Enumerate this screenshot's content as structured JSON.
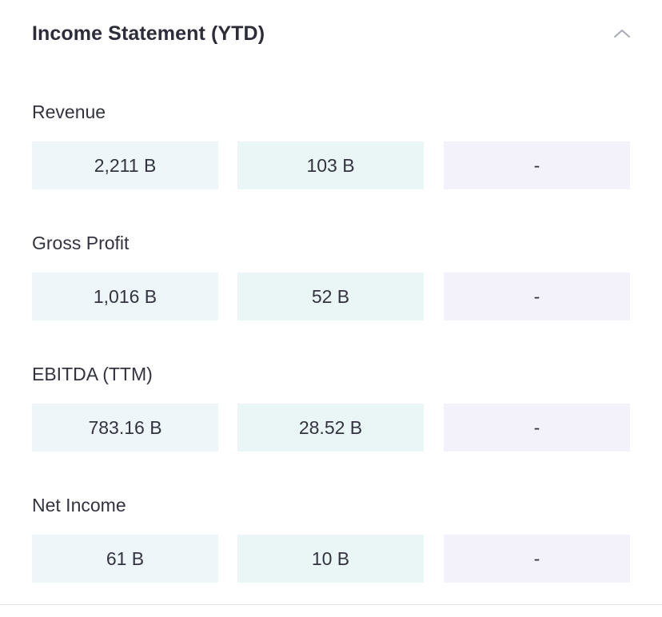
{
  "section": {
    "title": "Income Statement (YTD)",
    "collapse_icon": "chevron-up-icon"
  },
  "metrics": [
    {
      "label": "Revenue",
      "values": [
        "2,211 B",
        "103 B",
        "-"
      ]
    },
    {
      "label": "Gross Profit",
      "values": [
        "1,016 B",
        "52 B",
        "-"
      ]
    },
    {
      "label": "EBITDA (TTM)",
      "values": [
        "783.16 B",
        "28.52 B",
        "-"
      ]
    },
    {
      "label": "Net Income",
      "values": [
        "61 B",
        "10 B",
        "-"
      ]
    }
  ],
  "colors": {
    "col1_bg": "#eef6fa",
    "col2_bg": "#eaf6f6",
    "col3_bg": "#f3f2fb",
    "text": "#333340"
  }
}
